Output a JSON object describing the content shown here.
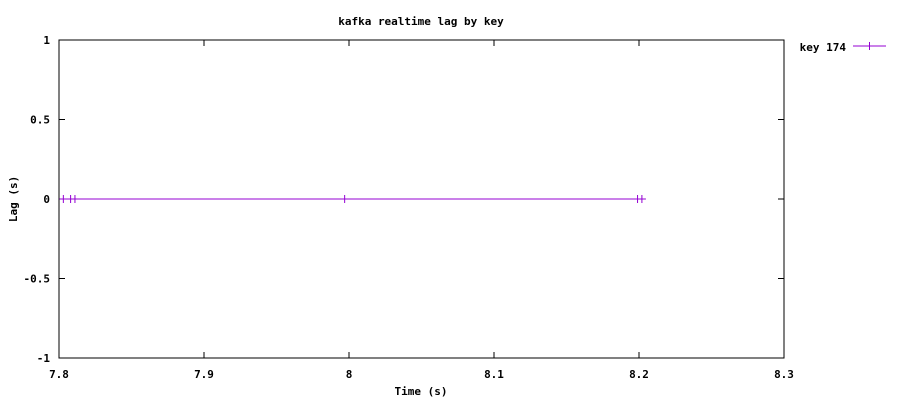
{
  "chart_data": {
    "type": "line",
    "title": "kafka realtime lag by key",
    "xlabel": "Time (s)",
    "ylabel": "Lag (s)",
    "xlim": [
      7.8,
      8.3
    ],
    "ylim": [
      -1,
      1
    ],
    "x_ticks": [
      7.8,
      7.9,
      8.0,
      8.1,
      8.2,
      8.3
    ],
    "x_tick_labels": [
      "7.8",
      "7.9",
      "8",
      "8.1",
      "8.2",
      "8.3"
    ],
    "y_ticks": [
      -1,
      -0.5,
      0,
      0.5,
      1
    ],
    "y_tick_labels": [
      "-1",
      "-0.5",
      "0",
      "0.5",
      "1"
    ],
    "grid": false,
    "legend_position": "top-right-outside",
    "series": [
      {
        "name": "key 174",
        "color": "#9400d3",
        "marker": "plus",
        "x": [
          7.803,
          7.808,
          7.811,
          7.997,
          8.199,
          8.202
        ],
        "y": [
          0,
          0,
          0,
          0,
          0,
          0
        ]
      }
    ]
  }
}
